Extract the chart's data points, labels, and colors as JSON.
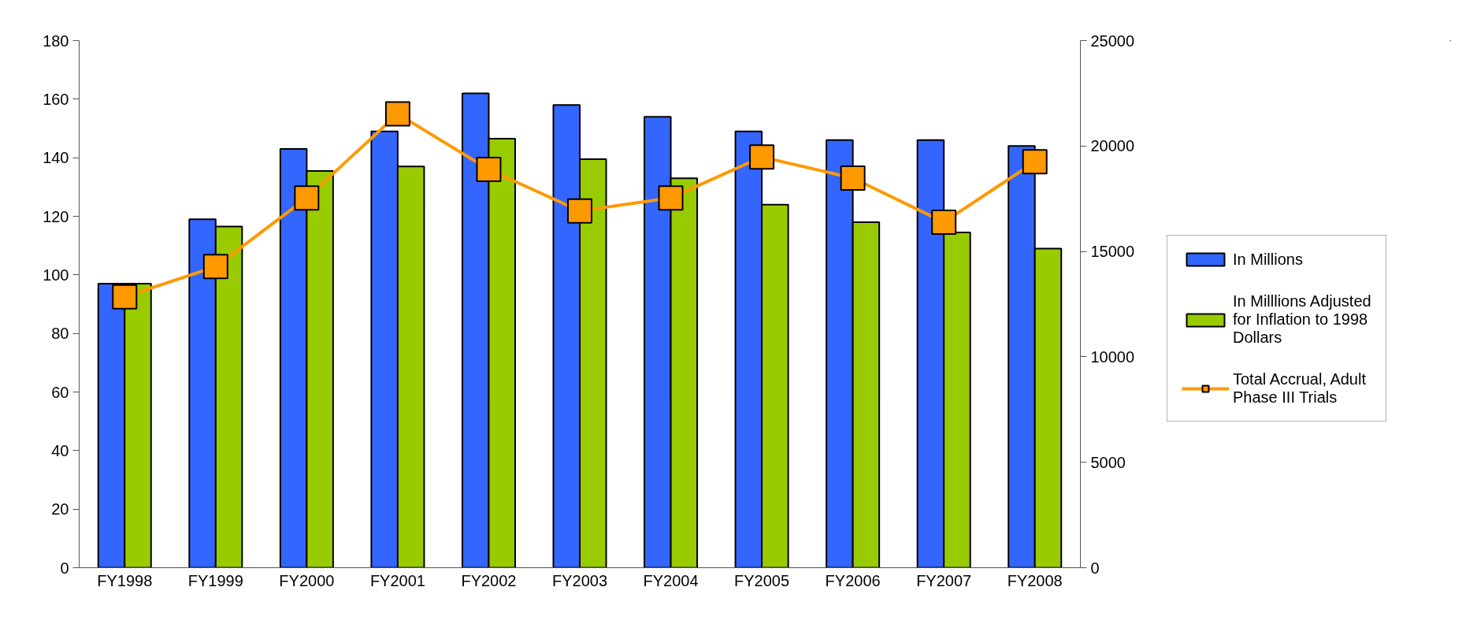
{
  "chart_data": {
    "type": "bar",
    "categories": [
      "FY1998",
      "FY1999",
      "FY2000",
      "FY2001",
      "FY2002",
      "FY2003",
      "FY2004",
      "FY2005",
      "FY2006",
      "FY2007",
      "FY2008"
    ],
    "series": [
      {
        "name": "In Millions",
        "color": "#3366ff",
        "values": [
          97,
          119,
          143,
          149,
          162,
          158,
          154,
          149,
          146,
          146,
          144
        ]
      },
      {
        "name": "In Milllions Adjusted for Inflation to 1998 Dollars",
        "color": "#99cc00",
        "values": [
          97,
          116.5,
          135.5,
          137,
          146.5,
          139.5,
          133,
          124,
          118,
          114.5,
          109
        ]
      },
      {
        "name": "Total Accrual, Adult Phase III Trials",
        "type": "line",
        "axis": "y2",
        "color": "#ff9900",
        "marker": "square",
        "values": [
          12850,
          14280,
          17540,
          21520,
          18890,
          16920,
          17540,
          19480,
          18480,
          16390,
          19250
        ]
      }
    ],
    "ylim": [
      0,
      180
    ],
    "yticks": [
      0,
      20,
      40,
      60,
      80,
      100,
      120,
      140,
      160,
      180
    ],
    "y2lim": [
      0,
      25000
    ],
    "y2ticks": [
      0,
      5000,
      10000,
      15000,
      20000,
      25000
    ],
    "grid": false,
    "legend": "right"
  }
}
